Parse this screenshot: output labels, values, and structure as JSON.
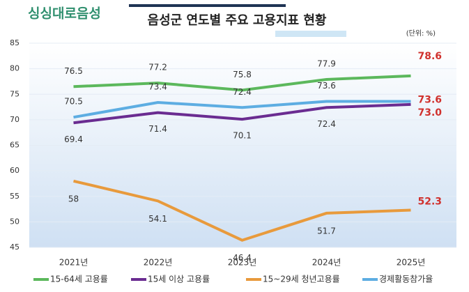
{
  "logo": "싱싱대로음성",
  "chart_data": {
    "type": "line",
    "title": "음성군 연도별 주요 고용지표 현황",
    "unit_note": "(단위: %)",
    "categories": [
      "2021년",
      "2022년",
      "2023년",
      "2024년",
      "2025년"
    ],
    "series": [
      {
        "name": "15-64세 고용률",
        "color": "#5cb85c",
        "values": [
          76.5,
          77.2,
          75.8,
          77.9,
          78.6
        ]
      },
      {
        "name": "15세 이상 고용률",
        "color": "#6a2c91",
        "values": [
          69.4,
          71.4,
          70.1,
          72.4,
          73.0
        ],
        "value_labels": [
          "69.4",
          "71.4",
          "70.1",
          "72.4",
          "73.0"
        ]
      },
      {
        "name": "15~29세 청년고용률",
        "color": "#e89a3c",
        "values": [
          58,
          54.1,
          46.4,
          51.7,
          52.3
        ]
      },
      {
        "name": "경제활동참가율",
        "color": "#5dade2",
        "values": [
          70.5,
          73.4,
          72.4,
          73.6,
          73.6
        ]
      }
    ],
    "ylim": [
      45,
      85
    ],
    "yticks": [
      45,
      50,
      55,
      60,
      65,
      70,
      75,
      80,
      85
    ],
    "grid": true,
    "legend": "bottom"
  }
}
